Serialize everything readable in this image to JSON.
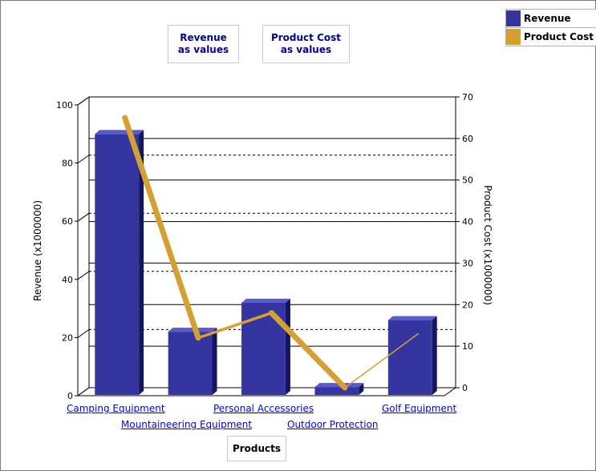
{
  "buttons": {
    "revenue_values": [
      "Revenue",
      "as values"
    ],
    "cost_values": [
      "Product Cost",
      "as values"
    ]
  },
  "legend": [
    {
      "label": "Revenue",
      "color": "#3535a0"
    },
    {
      "label": "Product Cost",
      "color": "#d4a033"
    }
  ],
  "chart_data": {
    "type": "bar",
    "categories": [
      "Camping Equipment",
      "Mountaineering Equipment",
      "Personal Accessories",
      "Outdoor Protection",
      "Golf Equipment"
    ],
    "series": [
      {
        "name": "Revenue",
        "type": "bar",
        "axis": "left",
        "values": [
          90,
          22,
          32,
          3,
          26
        ],
        "color": "#3535a0"
      },
      {
        "name": "Product Cost",
        "type": "line",
        "axis": "right",
        "values": [
          65,
          12,
          18,
          0,
          13
        ],
        "color": "#d4a033"
      }
    ],
    "xlabel": "Products",
    "ylabel": "Revenue (x1000000)",
    "y2label": "Product Cost (x1000000)",
    "ylim": [
      0,
      100
    ],
    "y2lim": [
      0,
      70
    ],
    "yticks": [
      "0",
      "20",
      "40",
      "60",
      "80",
      "100"
    ],
    "y2ticks": [
      "0",
      "10",
      "20",
      "30",
      "40",
      "50",
      "60",
      "70"
    ]
  }
}
